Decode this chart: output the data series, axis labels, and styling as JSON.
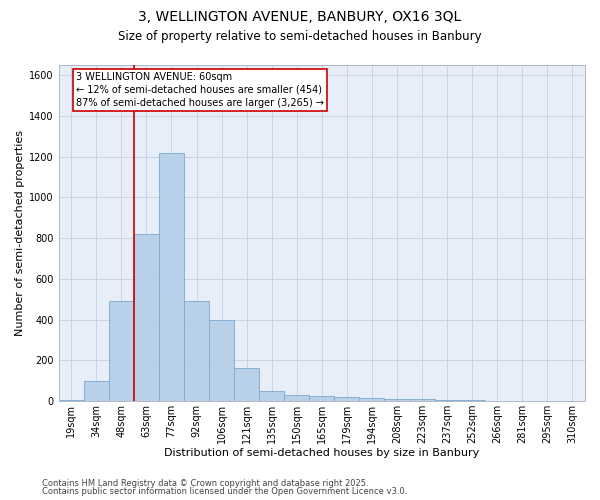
{
  "title_line1": "3, WELLINGTON AVENUE, BANBURY, OX16 3QL",
  "title_line2": "Size of property relative to semi-detached houses in Banbury",
  "xlabel": "Distribution of semi-detached houses by size in Banbury",
  "ylabel": "Number of semi-detached properties",
  "categories": [
    "19sqm",
    "34sqm",
    "48sqm",
    "63sqm",
    "77sqm",
    "92sqm",
    "106sqm",
    "121sqm",
    "135sqm",
    "150sqm",
    "165sqm",
    "179sqm",
    "194sqm",
    "208sqm",
    "223sqm",
    "237sqm",
    "252sqm",
    "266sqm",
    "281sqm",
    "295sqm",
    "310sqm"
  ],
  "values": [
    5,
    100,
    490,
    820,
    1220,
    490,
    400,
    160,
    50,
    30,
    25,
    20,
    15,
    10,
    8,
    5,
    3,
    2,
    2,
    1,
    1
  ],
  "bar_color": "#b8d0e8",
  "bar_edgecolor": "#7aaace",
  "annotation_title": "3 WELLINGTON AVENUE: 60sqm",
  "annotation_line1": "← 12% of semi-detached houses are smaller (454)",
  "annotation_line2": "87% of semi-detached houses are larger (3,265) →",
  "annotation_box_color": "#ffffff",
  "annotation_box_edgecolor": "#cc0000",
  "vline_color": "#cc0000",
  "vline_x_index": 3,
  "ylim": [
    0,
    1650
  ],
  "yticks": [
    0,
    200,
    400,
    600,
    800,
    1000,
    1200,
    1400,
    1600
  ],
  "grid_color": "#c8d4e8",
  "background_color": "#e8eef8",
  "footer_line1": "Contains HM Land Registry data © Crown copyright and database right 2025.",
  "footer_line2": "Contains public sector information licensed under the Open Government Licence v3.0.",
  "title_fontsize": 10,
  "subtitle_fontsize": 8.5,
  "axis_label_fontsize": 8,
  "tick_fontsize": 7,
  "annotation_fontsize": 7,
  "footer_fontsize": 6
}
